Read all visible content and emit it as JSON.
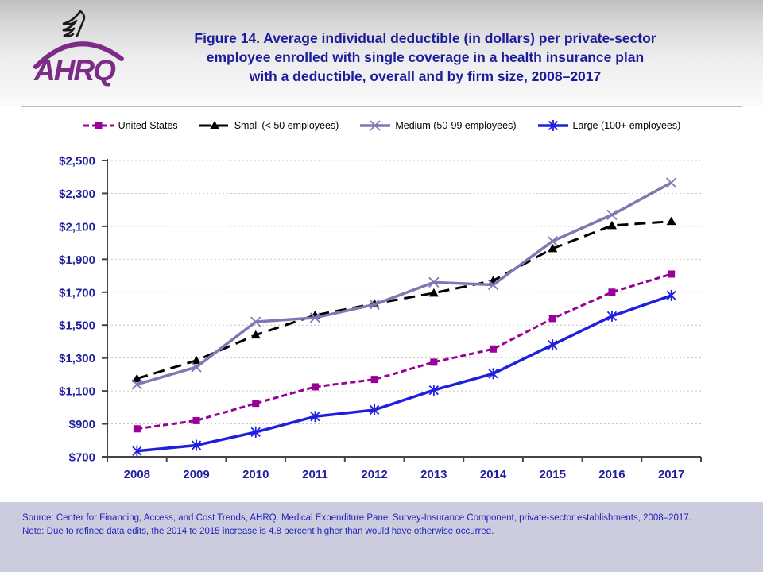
{
  "header": {
    "logo_text": "AHRQ",
    "title_lines": [
      "Figure 14. Average individual deductible (in dollars) per private-sector",
      "employee enrolled with single coverage in a health insurance plan",
      "with a deductible, overall and by firm size, 2008–2017"
    ]
  },
  "chart_data": {
    "type": "line",
    "x": [
      2008,
      2009,
      2010,
      2011,
      2012,
      2013,
      2014,
      2015,
      2016,
      2017
    ],
    "series": [
      {
        "name": "United States",
        "color": "#990099",
        "dash": "7,4",
        "marker": "square",
        "values": [
          870,
          920,
          1025,
          1125,
          1170,
          1275,
          1355,
          1540,
          1700,
          1810
        ]
      },
      {
        "name": "Small (< 50 employees)",
        "color": "#000000",
        "dash": "14,8",
        "marker": "triangle",
        "values": [
          1175,
          1285,
          1440,
          1560,
          1630,
          1695,
          1770,
          1965,
          2105,
          2130
        ]
      },
      {
        "name": "Medium (50-99 employees)",
        "color": "#8674B4",
        "dash": "",
        "marker": "x",
        "values": [
          1140,
          1245,
          1520,
          1545,
          1625,
          1760,
          1745,
          2010,
          2170,
          2365
        ]
      },
      {
        "name": "Large (100+ employees)",
        "color": "#1f1fe0",
        "dash": "",
        "marker": "asterisk",
        "values": [
          735,
          770,
          850,
          945,
          985,
          1105,
          1205,
          1380,
          1555,
          1680
        ]
      }
    ],
    "ylim": [
      700,
      2500
    ],
    "ytick_step": 200,
    "ytick_labels": [
      "$700",
      "$900",
      "$1,100",
      "$1,300",
      "$1,500",
      "$1,700",
      "$1,900",
      "$2,100",
      "$2,300",
      "$2,500"
    ],
    "grid": "horizontal-dotted",
    "legend_position": "top",
    "axis_label_color": "#1f1f9e",
    "gridline_color": "#c6c6c6",
    "axis_line_color": "#454545"
  },
  "footer": {
    "source": "Source: Center for Financing, Access, and Cost Trends, AHRQ. Medical Expenditure Panel Survey-Insurance Component, private-sector establishments, 2008–2017.",
    "note": "Note: Due to refined data edits, the 2014 to 2015 increase is 4.8 percent higher than would have otherwise occurred."
  }
}
